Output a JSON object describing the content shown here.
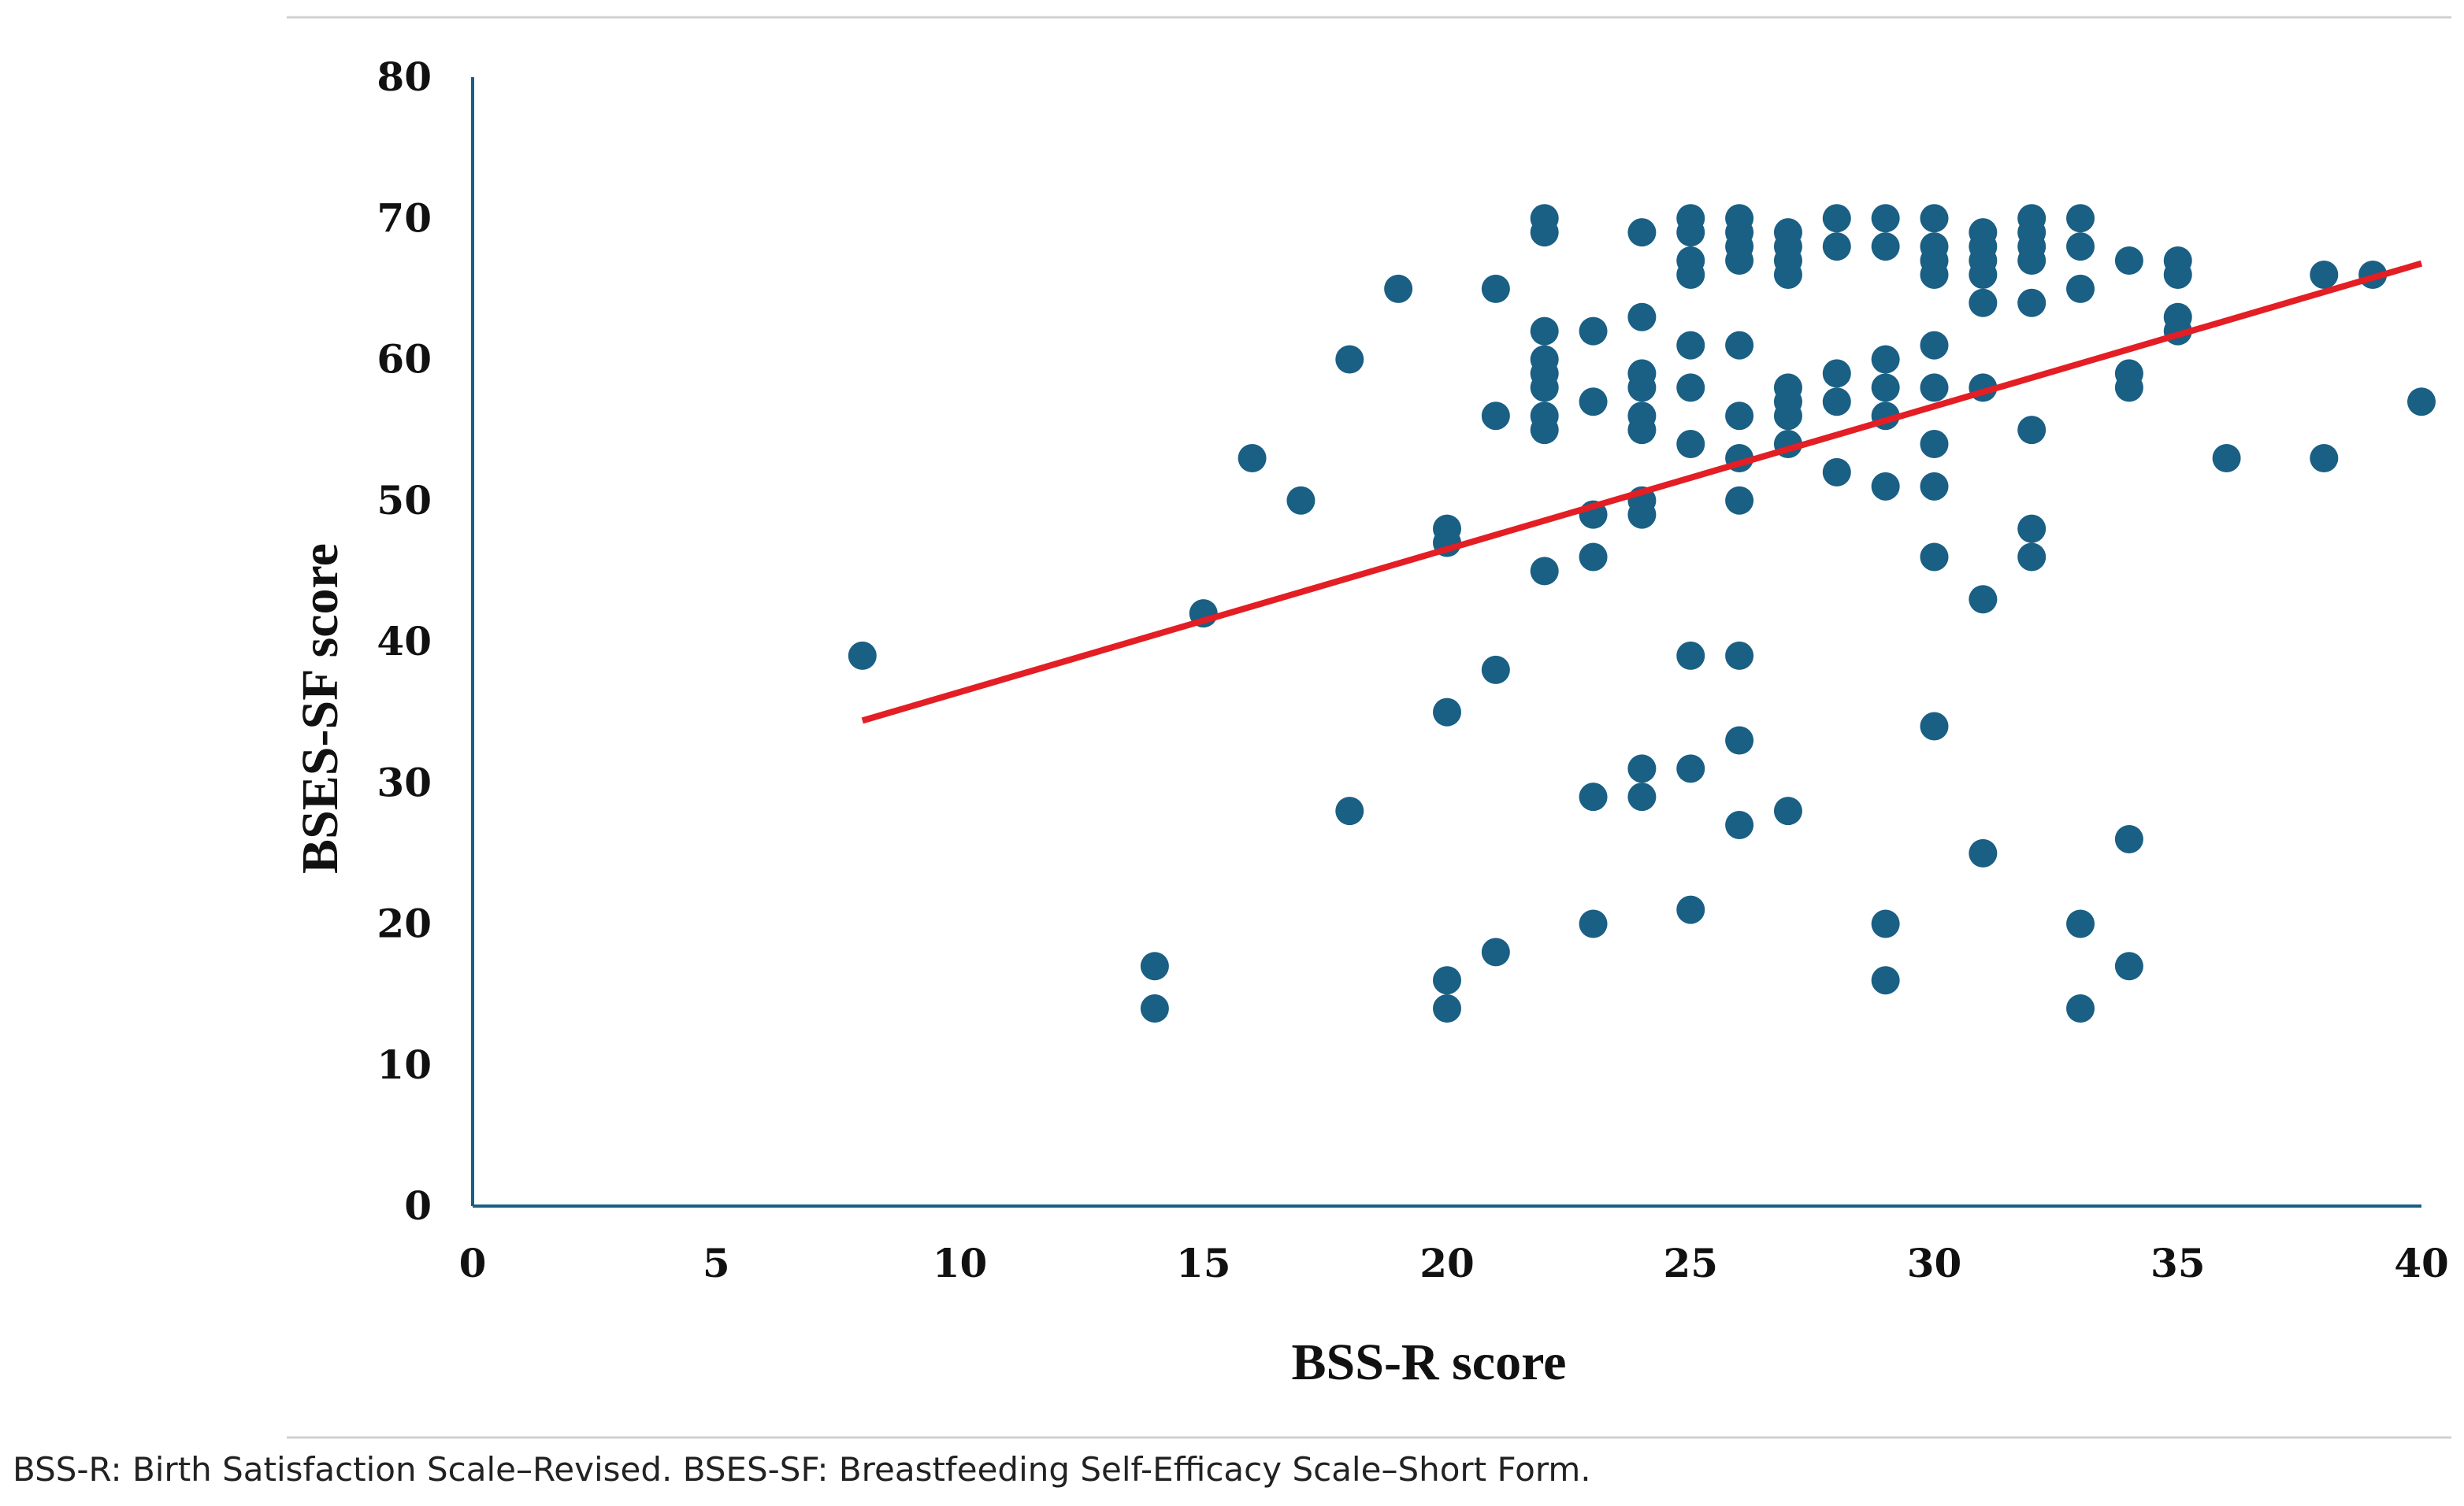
{
  "chart_data": {
    "type": "scatter",
    "xlabel": "BSS-R score",
    "ylabel": "BSES-SF score",
    "xlim": [
      0,
      40
    ],
    "ylim": [
      0,
      80
    ],
    "xticks": [
      0,
      5,
      10,
      15,
      20,
      25,
      30,
      35,
      40
    ],
    "yticks": [
      0,
      10,
      20,
      30,
      40,
      50,
      60,
      70,
      80
    ],
    "grid": false,
    "marker_color": "#1a5f84",
    "trendline": {
      "color": "#e31e24",
      "x": [
        8,
        40
      ],
      "y": [
        34.4,
        66.8
      ]
    },
    "points": [
      [
        8,
        39
      ],
      [
        14,
        17
      ],
      [
        14,
        14
      ],
      [
        15,
        42
      ],
      [
        16,
        53
      ],
      [
        17,
        50
      ],
      [
        18,
        60
      ],
      [
        18,
        28
      ],
      [
        19,
        65
      ],
      [
        20,
        48
      ],
      [
        20,
        47
      ],
      [
        20,
        35
      ],
      [
        20,
        16
      ],
      [
        20,
        14
      ],
      [
        21,
        65
      ],
      [
        21,
        56
      ],
      [
        21,
        38
      ],
      [
        21,
        18
      ],
      [
        22,
        70
      ],
      [
        22,
        69
      ],
      [
        22,
        62
      ],
      [
        22,
        60
      ],
      [
        22,
        59
      ],
      [
        22,
        58
      ],
      [
        22,
        56
      ],
      [
        22,
        55
      ],
      [
        22,
        45
      ],
      [
        23,
        62
      ],
      [
        23,
        57
      ],
      [
        23,
        49
      ],
      [
        23,
        46
      ],
      [
        23,
        29
      ],
      [
        23,
        20
      ],
      [
        24,
        69
      ],
      [
        24,
        63
      ],
      [
        24,
        59
      ],
      [
        24,
        58
      ],
      [
        24,
        56
      ],
      [
        24,
        55
      ],
      [
        24,
        50
      ],
      [
        24,
        49
      ],
      [
        24,
        31
      ],
      [
        24,
        29
      ],
      [
        25,
        70
      ],
      [
        25,
        69
      ],
      [
        25,
        67
      ],
      [
        25,
        66
      ],
      [
        25,
        61
      ],
      [
        25,
        58
      ],
      [
        25,
        54
      ],
      [
        25,
        39
      ],
      [
        25,
        31
      ],
      [
        25,
        21
      ],
      [
        26,
        70
      ],
      [
        26,
        69
      ],
      [
        26,
        68
      ],
      [
        26,
        67
      ],
      [
        26,
        61
      ],
      [
        26,
        56
      ],
      [
        26,
        53
      ],
      [
        26,
        50
      ],
      [
        26,
        39
      ],
      [
        26,
        33
      ],
      [
        26,
        27
      ],
      [
        27,
        69
      ],
      [
        27,
        68
      ],
      [
        27,
        67
      ],
      [
        27,
        66
      ],
      [
        27,
        58
      ],
      [
        27,
        57
      ],
      [
        27,
        56
      ],
      [
        27,
        54
      ],
      [
        27,
        28
      ],
      [
        28,
        70
      ],
      [
        28,
        68
      ],
      [
        28,
        59
      ],
      [
        28,
        57
      ],
      [
        28,
        52
      ],
      [
        29,
        70
      ],
      [
        29,
        68
      ],
      [
        29,
        60
      ],
      [
        29,
        58
      ],
      [
        29,
        56
      ],
      [
        29,
        51
      ],
      [
        29,
        20
      ],
      [
        29,
        16
      ],
      [
        30,
        70
      ],
      [
        30,
        68
      ],
      [
        30,
        67
      ],
      [
        30,
        66
      ],
      [
        30,
        61
      ],
      [
        30,
        58
      ],
      [
        30,
        54
      ],
      [
        30,
        51
      ],
      [
        30,
        46
      ],
      [
        30,
        34
      ],
      [
        31,
        69
      ],
      [
        31,
        68
      ],
      [
        31,
        67
      ],
      [
        31,
        66
      ],
      [
        31,
        64
      ],
      [
        31,
        58
      ],
      [
        31,
        43
      ],
      [
        31,
        25
      ],
      [
        32,
        70
      ],
      [
        32,
        69
      ],
      [
        32,
        68
      ],
      [
        32,
        67
      ],
      [
        32,
        64
      ],
      [
        32,
        55
      ],
      [
        32,
        48
      ],
      [
        32,
        46
      ],
      [
        33,
        70
      ],
      [
        33,
        68
      ],
      [
        33,
        65
      ],
      [
        33,
        20
      ],
      [
        33,
        14
      ],
      [
        34,
        67
      ],
      [
        34,
        59
      ],
      [
        34,
        58
      ],
      [
        34,
        26
      ],
      [
        34,
        17
      ],
      [
        35,
        67
      ],
      [
        35,
        66
      ],
      [
        35,
        63
      ],
      [
        35,
        62
      ],
      [
        36,
        53
      ],
      [
        38,
        66
      ],
      [
        38,
        53
      ],
      [
        39,
        66
      ],
      [
        40,
        57
      ]
    ]
  },
  "caption": "BSS-R: Birth Satisfaction Scale–Revised. BSES-SF: Breastfeeding Self-Efficacy Scale–Short Form."
}
